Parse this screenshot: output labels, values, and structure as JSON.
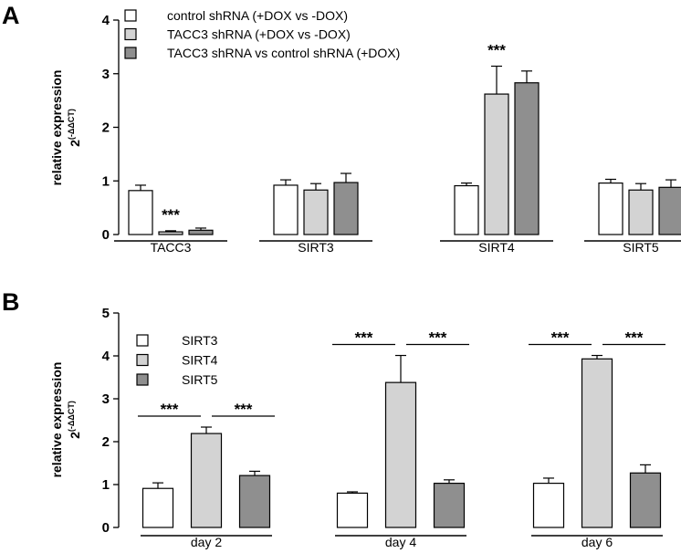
{
  "chart_data": [
    {
      "panel": "A",
      "type": "bar",
      "ylabel": "relative expression",
      "ylabel_formula": "2^(-ΔΔCT)",
      "ylabel_base": "2",
      "ylabel_exp": "(-ΔΔCT)",
      "ylim": [
        0,
        4
      ],
      "yticks": [
        "0",
        "1",
        "2",
        "3",
        "4"
      ],
      "categories": [
        "TACC3",
        "SIRT3",
        "SIRT4",
        "SIRT5"
      ],
      "series": [
        {
          "name": "control shRNA (+DOX vs -DOX)",
          "color": "#ffffff",
          "values": [
            0.82,
            0.92,
            0.91,
            0.96
          ],
          "errors": [
            0.1,
            0.1,
            0.05,
            0.07
          ]
        },
        {
          "name": "TACC3 shRNA (+DOX vs -DOX)",
          "color": "#d3d3d3",
          "values": [
            0.05,
            0.83,
            2.62,
            0.83
          ],
          "errors": [
            0.02,
            0.12,
            0.52,
            0.12
          ]
        },
        {
          "name": "TACC3 shRNA vs control shRNA (+DOX)",
          "color": "#8f8f8f",
          "values": [
            0.08,
            0.97,
            2.83,
            0.88
          ],
          "errors": [
            0.04,
            0.17,
            0.22,
            0.14
          ]
        }
      ],
      "annotations": [
        {
          "text": "***",
          "category": "TACC3",
          "series": 1
        },
        {
          "text": "***",
          "category": "SIRT4",
          "series": 1
        }
      ]
    },
    {
      "panel": "B",
      "type": "bar",
      "ylabel": "relative expression",
      "ylabel_formula": "2^(-ΔΔCT)",
      "ylabel_base": "2",
      "ylabel_exp": "(-ΔΔCT)",
      "ylim": [
        0,
        5
      ],
      "yticks": [
        "0",
        "1",
        "2",
        "3",
        "4",
        "5"
      ],
      "categories": [
        "day 2",
        "day 4",
        "day 6"
      ],
      "series": [
        {
          "name": "SIRT3",
          "color": "#ffffff",
          "values": [
            0.91,
            0.8,
            1.03
          ],
          "errors": [
            0.13,
            0.03,
            0.12
          ]
        },
        {
          "name": "SIRT4",
          "color": "#d3d3d3",
          "values": [
            2.19,
            3.38,
            3.93
          ],
          "errors": [
            0.15,
            0.63,
            0.08
          ]
        },
        {
          "name": "SIRT5",
          "color": "#8f8f8f",
          "values": [
            1.21,
            1.03,
            1.27
          ],
          "errors": [
            0.1,
            0.08,
            0.19
          ]
        }
      ],
      "annotations": [
        {
          "text": "***",
          "category": "day 2",
          "between": [
            0,
            1
          ]
        },
        {
          "text": "***",
          "category": "day 2",
          "between": [
            1,
            2
          ]
        },
        {
          "text": "***",
          "category": "day 4",
          "between": [
            0,
            1
          ]
        },
        {
          "text": "***",
          "category": "day 4",
          "between": [
            1,
            2
          ]
        },
        {
          "text": "***",
          "category": "day 6",
          "between": [
            0,
            1
          ]
        },
        {
          "text": "***",
          "category": "day 6",
          "between": [
            1,
            2
          ]
        }
      ]
    }
  ],
  "panels": {
    "a_label": "A",
    "b_label": "B"
  }
}
